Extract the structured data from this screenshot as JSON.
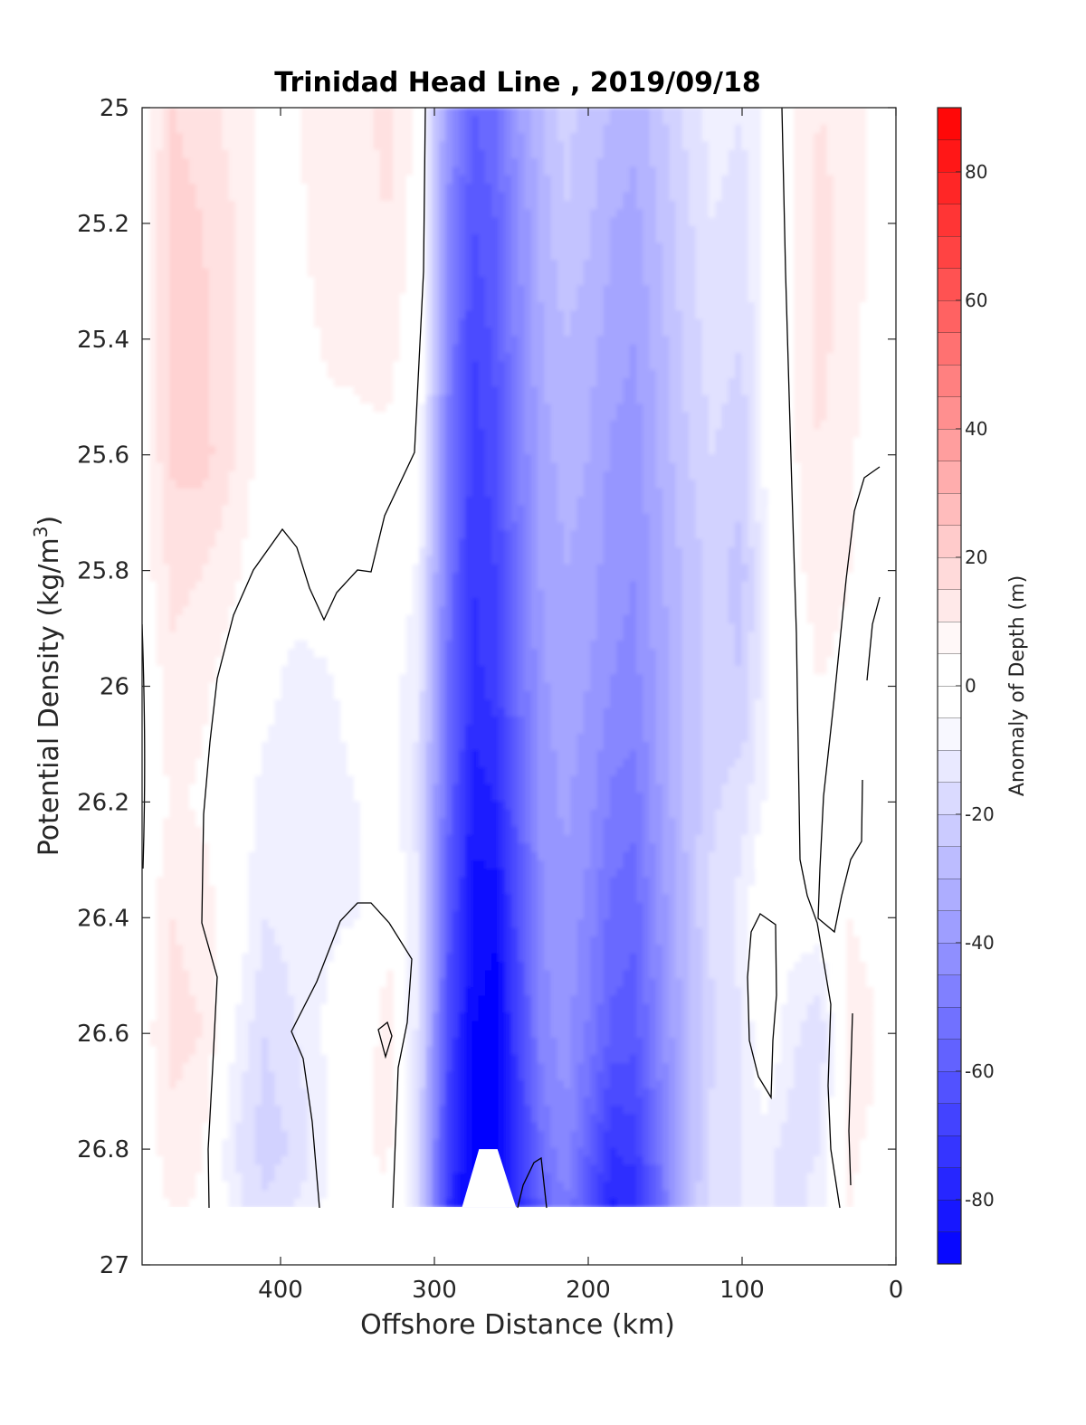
{
  "chart_data": {
    "type": "heatmap",
    "subtype": "filled-contour",
    "title": "Trinidad Head Line , 2019/09/18",
    "xlabel": "Offshore Distance (km)",
    "ylabel_main": "Potential Density (kg/m",
    "ylabel_sup": "3",
    "ylabel_close": ")",
    "xlim": [
      490,
      0
    ],
    "x_reversed": true,
    "ylim": [
      25,
      27
    ],
    "y_reversed": true,
    "x_ticks": [
      {
        "value": 400,
        "label": "400"
      },
      {
        "value": 300,
        "label": "300"
      },
      {
        "value": 200,
        "label": "200"
      },
      {
        "value": 100,
        "label": "100"
      },
      {
        "value": 0,
        "label": "0"
      }
    ],
    "y_ticks": [
      {
        "value": 25,
        "label": "25"
      },
      {
        "value": 25.2,
        "label": "25.2"
      },
      {
        "value": 25.4,
        "label": "25.4"
      },
      {
        "value": 25.6,
        "label": "25.6"
      },
      {
        "value": 25.8,
        "label": "25.8"
      },
      {
        "value": 26,
        "label": "26"
      },
      {
        "value": 26.2,
        "label": "26.2"
      },
      {
        "value": 26.4,
        "label": "26.4"
      },
      {
        "value": 26.6,
        "label": "26.6"
      },
      {
        "value": 26.8,
        "label": "26.8"
      },
      {
        "value": 27,
        "label": "27"
      }
    ],
    "data_sigma_max": 26.9,
    "colorbar": {
      "label": "Anomaly of Depth (m)",
      "clim": [
        -90,
        90
      ],
      "level_step": 5,
      "ticks": [
        {
          "value": 80,
          "label": "80"
        },
        {
          "value": 60,
          "label": "60"
        },
        {
          "value": 40,
          "label": "40"
        },
        {
          "value": 20,
          "label": "20"
        },
        {
          "value": 0,
          "label": "0"
        },
        {
          "value": -20,
          "label": "-20"
        },
        {
          "value": -40,
          "label": "-40"
        },
        {
          "value": -60,
          "label": "-60"
        },
        {
          "value": -80,
          "label": "-80"
        }
      ],
      "color_negative_end": "#0000ff",
      "color_positive_end": "#ff0000",
      "color_zero": "#ffffff"
    },
    "anomaly_grid": {
      "x": [
        485,
        470,
        450,
        430,
        410,
        390,
        370,
        350,
        330,
        310,
        290,
        275,
        260,
        245,
        230,
        215,
        200,
        185,
        170,
        155,
        140,
        120,
        100,
        85,
        70,
        50,
        30,
        15
      ],
      "sigma": [
        25.0,
        25.2,
        25.4,
        25.6,
        25.8,
        26.0,
        26.2,
        26.4,
        26.6,
        26.8,
        26.9
      ],
      "values": [
        [
          5,
          15,
          12,
          8,
          3,
          4,
          10,
          8,
          12,
          3,
          -40,
          -55,
          -50,
          -35,
          -25,
          -18,
          -22,
          -25,
          -28,
          -22,
          -15,
          -8,
          -10,
          -4,
          4,
          10,
          8,
          4
        ],
        [
          6,
          18,
          15,
          10,
          3,
          3,
          9,
          8,
          10,
          2,
          -42,
          -60,
          -55,
          -40,
          -28,
          -20,
          -24,
          -30,
          -32,
          -25,
          -18,
          -10,
          -12,
          -4,
          4,
          12,
          8,
          4
        ],
        [
          7,
          18,
          16,
          10,
          3,
          2,
          6,
          6,
          7,
          1,
          -45,
          -65,
          -58,
          -42,
          -30,
          -25,
          -28,
          -32,
          -35,
          -28,
          -20,
          -12,
          -15,
          -4,
          3,
          12,
          7,
          3
        ],
        [
          6,
          16,
          17,
          10,
          2,
          1,
          3,
          4,
          4,
          0,
          -48,
          -68,
          -62,
          -45,
          -32,
          -28,
          -30,
          -36,
          -38,
          -30,
          -22,
          -15,
          -18,
          -4,
          3,
          10,
          6,
          2
        ],
        [
          4,
          12,
          10,
          6,
          1,
          -1,
          -1,
          1,
          1,
          -6,
          -50,
          -70,
          -65,
          -48,
          -34,
          -30,
          -32,
          -38,
          -40,
          -32,
          -25,
          -18,
          -22,
          -6,
          2,
          8,
          5,
          1
        ],
        [
          2,
          8,
          6,
          2,
          -2,
          -8,
          -6,
          -2,
          -1,
          -10,
          -52,
          -72,
          -68,
          -50,
          -36,
          -32,
          -35,
          -40,
          -42,
          -34,
          -26,
          -18,
          -20,
          -6,
          0,
          5,
          3,
          1
        ],
        [
          1,
          6,
          4,
          0,
          -8,
          -10,
          -8,
          -5,
          -2,
          -12,
          -55,
          -78,
          -75,
          -55,
          -38,
          -34,
          -38,
          -46,
          -48,
          -36,
          -26,
          -16,
          -12,
          -5,
          -1,
          2,
          3,
          1
        ],
        [
          3,
          10,
          8,
          0,
          -10,
          -8,
          -6,
          -5,
          4,
          -10,
          -60,
          -82,
          -84,
          -60,
          -40,
          -36,
          -42,
          -52,
          -54,
          -40,
          -28,
          -14,
          -8,
          4,
          -2,
          -2,
          5,
          3
        ],
        [
          4,
          12,
          10,
          -5,
          -15,
          -10,
          -4,
          0,
          8,
          -12,
          -65,
          -85,
          -88,
          -65,
          -42,
          -38,
          -46,
          -56,
          -58,
          -44,
          -30,
          -16,
          -10,
          2,
          -8,
          -14,
          8,
          6
        ],
        [
          3,
          8,
          5,
          -10,
          -18,
          -14,
          -6,
          4,
          6,
          -16,
          -70,
          -88,
          -88,
          -70,
          -50,
          -40,
          -55,
          -70,
          -68,
          -50,
          -30,
          -14,
          -10,
          -8,
          -12,
          -10,
          6,
          4
        ],
        [
          2,
          6,
          4,
          -8,
          -14,
          -10,
          -4,
          3,
          4,
          -14,
          -72,
          -88,
          -88,
          -72,
          -55,
          -45,
          -60,
          -76,
          -74,
          -55,
          -30,
          -12,
          -10,
          -8,
          -12,
          -8,
          5,
          3
        ]
      ]
    }
  }
}
